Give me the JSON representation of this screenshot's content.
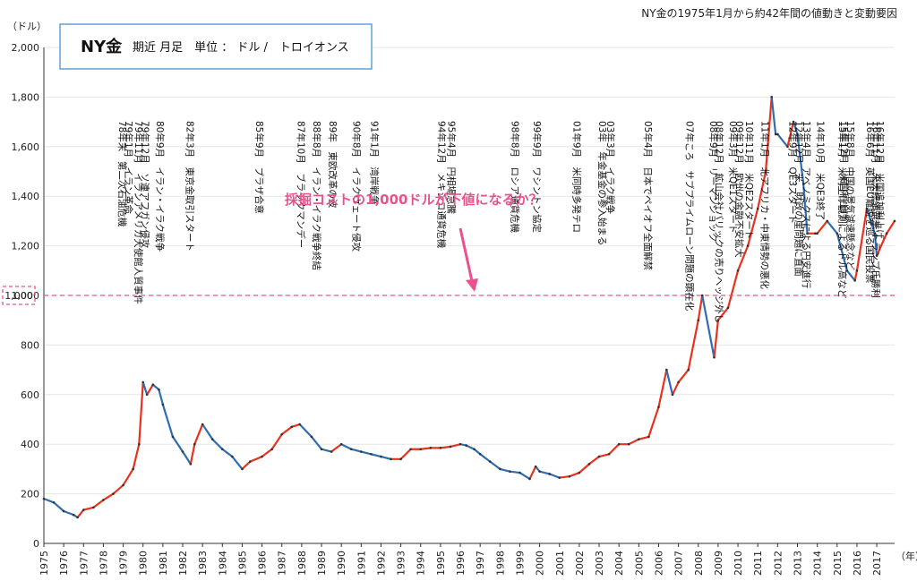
{
  "header_title": "NY金の1975年1月から約42年間の値動きと変動要因",
  "yunit": "（ドル）",
  "xunit": "（年）",
  "box": {
    "title": "NY金",
    "subtitle": "期近 月足　単位 ： ドル /　トロイオンス"
  },
  "callout": "採掘コストの1,000ドルが下値になるか？",
  "colors": {
    "up": "#e8321e",
    "down": "#2e6db4",
    "dashed": "#e8528f",
    "box_border": "#3c8ac9"
  },
  "chart_data": {
    "type": "line",
    "ylim": [
      0,
      2000
    ],
    "xlim": [
      1975,
      2017.9
    ],
    "yticks": [
      0,
      200,
      400,
      600,
      800,
      1000,
      1200,
      1400,
      1600,
      1800,
      2000
    ],
    "ytick_labels": [
      "0",
      "200",
      "400",
      "600",
      "800",
      "1,000",
      "1,200",
      "1,400",
      "1,600",
      "1,800",
      "2,000"
    ],
    "xticks": [
      "1975",
      "1976",
      "1977",
      "1978",
      "1979",
      "1980",
      "1981",
      "1982",
      "1983",
      "1984",
      "1985",
      "1986",
      "1987",
      "1988",
      "1989",
      "1990",
      "1991",
      "1992",
      "1993",
      "1994",
      "1995",
      "1996",
      "1997",
      "1998",
      "1999",
      "2000",
      "2001",
      "2002",
      "2003",
      "2004",
      "2005",
      "2006",
      "2007",
      "2008",
      "2009",
      "2010",
      "2011",
      "2012",
      "2013",
      "2014",
      "2015",
      "2016",
      "2017"
    ],
    "reference_line": {
      "value": 1000,
      "label": "1,000"
    },
    "x": [
      1975.0,
      1975.5,
      1976.0,
      1976.5,
      1976.7,
      1977.0,
      1977.5,
      1978.0,
      1978.5,
      1979.0,
      1979.5,
      1979.8,
      1980.0,
      1980.2,
      1980.5,
      1980.8,
      1981.0,
      1981.5,
      1982.0,
      1982.4,
      1982.6,
      1983.0,
      1983.5,
      1984.0,
      1984.5,
      1985.0,
      1985.4,
      1986.0,
      1986.5,
      1987.0,
      1987.5,
      1987.9,
      1988.5,
      1989.0,
      1989.5,
      1990.0,
      1990.5,
      1991.0,
      1991.5,
      1992.0,
      1992.5,
      1993.0,
      1993.5,
      1994.0,
      1994.5,
      1995.0,
      1995.5,
      1996.0,
      1996.3,
      1996.7,
      1997.0,
      1997.5,
      1998.0,
      1998.5,
      1999.0,
      1999.5,
      1999.8,
      2000.0,
      2000.5,
      2001.0,
      2001.5,
      2002.0,
      2002.5,
      2003.0,
      2003.5,
      2004.0,
      2004.5,
      2005.0,
      2005.5,
      2006.0,
      2006.4,
      2006.7,
      2007.0,
      2007.5,
      2008.0,
      2008.2,
      2008.8,
      2009.0,
      2009.5,
      2010.0,
      2010.5,
      2011.0,
      2011.4,
      2011.7,
      2011.9,
      2012.0,
      2012.5,
      2012.8,
      2013.0,
      2013.3,
      2013.5,
      2013.9,
      2014.0,
      2014.5,
      2015.0,
      2015.5,
      2015.9,
      2016.0,
      2016.5,
      2016.9,
      2017.0,
      2017.5,
      2017.9
    ],
    "y": [
      180,
      165,
      130,
      115,
      105,
      135,
      145,
      175,
      200,
      235,
      300,
      400,
      650,
      600,
      640,
      620,
      560,
      430,
      370,
      320,
      400,
      480,
      420,
      380,
      350,
      300,
      330,
      350,
      380,
      440,
      470,
      480,
      430,
      380,
      370,
      400,
      380,
      370,
      360,
      350,
      340,
      340,
      380,
      380,
      385,
      385,
      390,
      400,
      395,
      380,
      360,
      330,
      300,
      290,
      285,
      260,
      310,
      290,
      280,
      265,
      270,
      285,
      320,
      350,
      360,
      400,
      400,
      420,
      430,
      550,
      700,
      600,
      650,
      700,
      900,
      1000,
      750,
      900,
      950,
      1100,
      1200,
      1350,
      1500,
      1800,
      1650,
      1650,
      1600,
      1700,
      1650,
      1450,
      1250,
      1250,
      1250,
      1300,
      1250,
      1100,
      1060,
      1100,
      1350,
      1250,
      1160,
      1250,
      1300
    ]
  },
  "annotations": [
    {
      "x": 1978.8,
      "text": "78年末　第二次石油危機"
    },
    {
      "x": 1979.1,
      "text": "79年1月　イラン革命"
    },
    {
      "x": 1979.6,
      "text": "79年11月　イランアメリカ大使館人質事件"
    },
    {
      "x": 1979.95,
      "text": "79年12月　ソ連アフガン侵攻"
    },
    {
      "x": 1980.7,
      "text": "80年9月　イラン・イラク戦争"
    },
    {
      "x": 1982.2,
      "text": "82年3月　東京金取引スタート"
    },
    {
      "x": 1985.7,
      "text": "85年9月　プラザ合意"
    },
    {
      "x": 1987.8,
      "text": "87年10月　ブラックマンデー"
    },
    {
      "x": 1988.6,
      "text": "88年8月　イラン・イラク戦争終結"
    },
    {
      "x": 1989.4,
      "text": "89年　東欧改革の波"
    },
    {
      "x": 1990.6,
      "text": "90年8月　イラクウェート侵攻"
    },
    {
      "x": 1991.5,
      "text": "91年1月　湾岸戦争"
    },
    {
      "x": 1994.9,
      "text": "94年12月　メキシコ通貨危機"
    },
    {
      "x": 1995.4,
      "text": "95年4月　円相場急騰"
    },
    {
      "x": 1998.6,
      "text": "98年8月　ロシア通貨危機"
    },
    {
      "x": 1999.7,
      "text": "99年9月　ワシントン協定"
    },
    {
      "x": 2001.7,
      "text": "01年9月　米同時多発テロ"
    },
    {
      "x": 2003.0,
      "text": "03年　年金基金の参入始まる"
    },
    {
      "x": 2003.4,
      "text": "03年3月　イラク戦争"
    },
    {
      "x": 2005.3,
      "text": "05年4月　日本でペイオフ全面解禁"
    },
    {
      "x": 2007.4,
      "text": "07年ころ　サブプライムローン問題の顕在化"
    },
    {
      "x": 2008.6,
      "text": "08年9月　リーマンショック"
    },
    {
      "x": 2008.9,
      "text": "08年12月　鉱山会社バリックの売りヘッジ外し"
    },
    {
      "x": 2009.6,
      "text": "09年3月　米QE1スタート"
    },
    {
      "x": 2009.9,
      "text": "09年12月　欧州の金融不安拡大"
    },
    {
      "x": 2010.4,
      "text": "10年11月　米QE2スタート"
    },
    {
      "x": 2011.2,
      "text": "11年1月　北アフリカ・中東情勢の悪化"
    },
    {
      "x": 2012.6,
      "text": "12年9月　QE3スタート"
    },
    {
      "x": 2012.9,
      "text": "12年12月　米、財政の崖問題に直面"
    },
    {
      "x": 2013.3,
      "text": "13年4月　アベノミクスによる円安進行"
    },
    {
      "x": 2014.0,
      "text": "14年10月　米QE3終了"
    },
    {
      "x": 2015.1,
      "text": "15年1月　米利上げ観測によるドル高など"
    },
    {
      "x": 2015.2,
      "text": "15年12月　米国利上げ"
    },
    {
      "x": 2015.5,
      "text": "15年8月　中国の景気減速懸念など"
    },
    {
      "x": 2016.5,
      "text": "16年6月　英国EU離脱を巡る国民投票"
    },
    {
      "x": 2016.8,
      "text": "16年11月　米大統領選挙 トランプ氏勝利"
    },
    {
      "x": 2017.0,
      "text": "16年12月　米国追加利上げ"
    }
  ]
}
